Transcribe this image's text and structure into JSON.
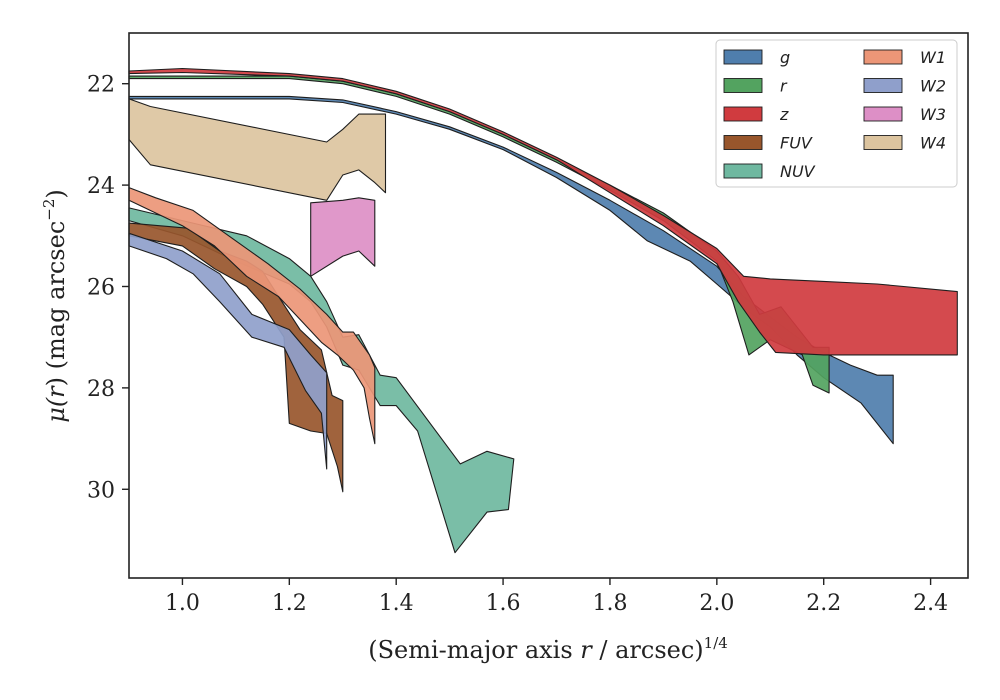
{
  "chart_data": {
    "type": "area",
    "xlabel_main": "(Semi-major axis ",
    "xlabel_var": "r",
    "xlabel_tail": " / arcsec)",
    "xlabel_sup": "1/4",
    "ylabel_main": "μ(",
    "ylabel_var": "r",
    "ylabel_tail": ") (mag arcsec",
    "ylabel_sup": "−2",
    "ylabel_end": ")",
    "xlim": [
      0.9,
      2.47
    ],
    "ylim": [
      31.75,
      21.0
    ],
    "y_inverted": true,
    "xticks": [
      1.0,
      1.2,
      1.4,
      1.6,
      1.8,
      2.0,
      2.2,
      2.4
    ],
    "xtick_labels": [
      "1.0",
      "1.2",
      "1.4",
      "1.6",
      "1.8",
      "2.0",
      "2.2",
      "2.4"
    ],
    "yticks": [
      22,
      24,
      26,
      28,
      30
    ],
    "ytick_labels": [
      "22",
      "24",
      "26",
      "28",
      "30"
    ],
    "grid": false,
    "legend_position": "top-right",
    "legend_columns": 2,
    "series": [
      {
        "name": "W4",
        "color": "#dcc49f",
        "upper": [
          [
            0.9,
            22.3
          ],
          [
            0.94,
            22.45
          ],
          [
            1.27,
            23.15
          ],
          [
            1.3,
            22.9
          ],
          [
            1.33,
            22.6
          ],
          [
            1.38,
            22.6
          ]
        ],
        "lower": [
          [
            0.9,
            23.1
          ],
          [
            0.94,
            23.6
          ],
          [
            1.27,
            24.3
          ],
          [
            1.3,
            23.8
          ],
          [
            1.33,
            23.7
          ],
          [
            1.36,
            23.95
          ],
          [
            1.38,
            24.15
          ]
        ]
      },
      {
        "name": "W3",
        "color": "#dd8fc6",
        "upper": [
          [
            1.24,
            24.35
          ],
          [
            1.3,
            24.3
          ],
          [
            1.33,
            24.25
          ],
          [
            1.36,
            24.3
          ]
        ],
        "lower": [
          [
            1.24,
            25.8
          ],
          [
            1.3,
            25.4
          ],
          [
            1.33,
            25.3
          ],
          [
            1.36,
            25.6
          ]
        ]
      },
      {
        "name": "NUV",
        "color": "#6fb8a0",
        "upper": [
          [
            0.9,
            24.45
          ],
          [
            1.0,
            24.7
          ],
          [
            1.12,
            25.0
          ],
          [
            1.2,
            25.45
          ],
          [
            1.24,
            25.8
          ],
          [
            1.27,
            26.3
          ],
          [
            1.3,
            27.0
          ],
          [
            1.33,
            26.95
          ],
          [
            1.37,
            27.75
          ],
          [
            1.4,
            27.8
          ],
          [
            1.52,
            29.5
          ],
          [
            1.57,
            29.25
          ],
          [
            1.62,
            29.4
          ]
        ],
        "lower": [
          [
            0.9,
            24.7
          ],
          [
            1.0,
            25.0
          ],
          [
            1.1,
            25.5
          ],
          [
            1.2,
            25.95
          ],
          [
            1.24,
            26.3
          ],
          [
            1.27,
            26.8
          ],
          [
            1.3,
            27.55
          ],
          [
            1.33,
            27.65
          ],
          [
            1.37,
            28.35
          ],
          [
            1.4,
            28.35
          ],
          [
            1.44,
            28.85
          ],
          [
            1.51,
            31.25
          ],
          [
            1.57,
            30.45
          ],
          [
            1.61,
            30.4
          ]
        ]
      },
      {
        "name": "FUV",
        "color": "#98562c",
        "upper": [
          [
            0.9,
            24.75
          ],
          [
            1.01,
            24.85
          ],
          [
            1.07,
            25.3
          ],
          [
            1.12,
            25.5
          ],
          [
            1.15,
            25.7
          ],
          [
            1.18,
            26.2
          ],
          [
            1.22,
            26.85
          ],
          [
            1.26,
            27.25
          ],
          [
            1.28,
            28.15
          ],
          [
            1.3,
            28.25
          ]
        ],
        "lower": [
          [
            0.9,
            25.0
          ],
          [
            1.0,
            25.2
          ],
          [
            1.06,
            25.65
          ],
          [
            1.12,
            26.0
          ],
          [
            1.15,
            26.35
          ],
          [
            1.19,
            27.0
          ],
          [
            1.2,
            28.7
          ],
          [
            1.24,
            28.85
          ],
          [
            1.27,
            28.9
          ],
          [
            1.29,
            29.55
          ],
          [
            1.3,
            30.05
          ]
        ]
      },
      {
        "name": "W2",
        "color": "#8f9fcb",
        "upper": [
          [
            0.9,
            24.95
          ],
          [
            1.0,
            25.3
          ],
          [
            1.07,
            25.75
          ],
          [
            1.13,
            26.55
          ],
          [
            1.2,
            26.85
          ],
          [
            1.24,
            27.35
          ],
          [
            1.27,
            27.7
          ]
        ],
        "lower": [
          [
            0.9,
            25.2
          ],
          [
            0.97,
            25.45
          ],
          [
            1.02,
            25.75
          ],
          [
            1.07,
            26.3
          ],
          [
            1.13,
            27.0
          ],
          [
            1.19,
            27.2
          ],
          [
            1.23,
            28.05
          ],
          [
            1.26,
            28.5
          ],
          [
            1.27,
            29.6
          ]
        ]
      },
      {
        "name": "W1",
        "color": "#ec9677",
        "upper": [
          [
            0.9,
            24.05
          ],
          [
            0.95,
            24.25
          ],
          [
            1.02,
            24.5
          ],
          [
            1.1,
            25.1
          ],
          [
            1.16,
            25.55
          ],
          [
            1.22,
            26.05
          ],
          [
            1.27,
            26.55
          ],
          [
            1.3,
            26.9
          ],
          [
            1.32,
            26.9
          ],
          [
            1.35,
            27.35
          ],
          [
            1.36,
            27.6
          ]
        ],
        "lower": [
          [
            0.9,
            24.3
          ],
          [
            1.0,
            24.8
          ],
          [
            1.06,
            25.2
          ],
          [
            1.12,
            25.8
          ],
          [
            1.18,
            26.2
          ],
          [
            1.22,
            26.65
          ],
          [
            1.26,
            27.1
          ],
          [
            1.29,
            27.35
          ],
          [
            1.32,
            27.65
          ],
          [
            1.34,
            28.0
          ],
          [
            1.35,
            28.6
          ],
          [
            1.36,
            29.1
          ]
        ]
      },
      {
        "name": "g",
        "color": "#4f7ead",
        "upper": [
          [
            0.9,
            22.25
          ],
          [
            1.2,
            22.25
          ],
          [
            1.3,
            22.32
          ],
          [
            1.4,
            22.55
          ],
          [
            1.5,
            22.85
          ],
          [
            1.6,
            23.25
          ],
          [
            1.7,
            23.75
          ],
          [
            1.8,
            24.3
          ],
          [
            1.9,
            24.9
          ],
          [
            2.0,
            25.6
          ],
          [
            2.05,
            26.2
          ],
          [
            2.1,
            26.6
          ],
          [
            2.15,
            27.0
          ],
          [
            2.2,
            27.3
          ],
          [
            2.25,
            27.55
          ],
          [
            2.3,
            27.75
          ],
          [
            2.33,
            27.75
          ]
        ],
        "lower": [
          [
            0.9,
            22.3
          ],
          [
            1.2,
            22.3
          ],
          [
            1.3,
            22.37
          ],
          [
            1.4,
            22.6
          ],
          [
            1.5,
            22.9
          ],
          [
            1.6,
            23.3
          ],
          [
            1.7,
            23.85
          ],
          [
            1.8,
            24.5
          ],
          [
            1.87,
            25.1
          ],
          [
            1.95,
            25.5
          ],
          [
            2.0,
            25.95
          ],
          [
            2.06,
            26.5
          ],
          [
            2.1,
            26.8
          ],
          [
            2.15,
            27.35
          ],
          [
            2.2,
            27.8
          ],
          [
            2.27,
            28.3
          ],
          [
            2.33,
            29.1
          ]
        ]
      },
      {
        "name": "r",
        "color": "#53a360",
        "upper": [
          [
            0.9,
            21.85
          ],
          [
            1.2,
            21.85
          ],
          [
            1.3,
            21.95
          ],
          [
            1.4,
            22.2
          ],
          [
            1.5,
            22.55
          ],
          [
            1.6,
            23.0
          ],
          [
            1.7,
            23.5
          ],
          [
            1.8,
            24.0
          ],
          [
            1.9,
            24.55
          ],
          [
            2.0,
            25.3
          ],
          [
            2.04,
            25.8
          ],
          [
            2.08,
            26.55
          ],
          [
            2.12,
            26.4
          ],
          [
            2.18,
            27.2
          ],
          [
            2.21,
            27.2
          ]
        ],
        "lower": [
          [
            0.9,
            21.9
          ],
          [
            1.2,
            21.9
          ],
          [
            1.3,
            22.0
          ],
          [
            1.4,
            22.25
          ],
          [
            1.5,
            22.6
          ],
          [
            1.6,
            23.05
          ],
          [
            1.7,
            23.55
          ],
          [
            1.8,
            24.1
          ],
          [
            1.9,
            24.7
          ],
          [
            2.0,
            25.5
          ],
          [
            2.03,
            26.3
          ],
          [
            2.06,
            27.35
          ],
          [
            2.1,
            27.05
          ],
          [
            2.16,
            27.35
          ],
          [
            2.18,
            27.95
          ],
          [
            2.21,
            28.1
          ]
        ]
      },
      {
        "name": "z",
        "color": "#d03b3f",
        "upper": [
          [
            0.9,
            21.75
          ],
          [
            1.0,
            21.7
          ],
          [
            1.2,
            21.8
          ],
          [
            1.3,
            21.9
          ],
          [
            1.4,
            22.15
          ],
          [
            1.5,
            22.5
          ],
          [
            1.6,
            22.95
          ],
          [
            1.7,
            23.45
          ],
          [
            1.8,
            24.0
          ],
          [
            1.9,
            24.6
          ],
          [
            2.0,
            25.25
          ],
          [
            2.05,
            25.8
          ],
          [
            2.1,
            25.85
          ],
          [
            2.2,
            25.9
          ],
          [
            2.3,
            25.95
          ],
          [
            2.45,
            26.1
          ]
        ],
        "lower": [
          [
            0.9,
            21.8
          ],
          [
            1.0,
            21.78
          ],
          [
            1.2,
            21.85
          ],
          [
            1.3,
            21.95
          ],
          [
            1.4,
            22.2
          ],
          [
            1.5,
            22.55
          ],
          [
            1.6,
            23.0
          ],
          [
            1.7,
            23.5
          ],
          [
            1.8,
            24.15
          ],
          [
            1.9,
            24.8
          ],
          [
            2.0,
            25.55
          ],
          [
            2.04,
            26.3
          ],
          [
            2.08,
            26.9
          ],
          [
            2.11,
            27.3
          ],
          [
            2.2,
            27.35
          ],
          [
            2.3,
            27.35
          ],
          [
            2.45,
            27.35
          ]
        ]
      }
    ],
    "legend": [
      {
        "name": "g",
        "color": "#4f7ead"
      },
      {
        "name": "r",
        "color": "#53a360"
      },
      {
        "name": "z",
        "color": "#d03b3f"
      },
      {
        "name": "FUV",
        "color": "#98562c"
      },
      {
        "name": "NUV",
        "color": "#6fb8a0"
      },
      {
        "name": "W1",
        "color": "#ec9677"
      },
      {
        "name": "W2",
        "color": "#8f9fcb"
      },
      {
        "name": "W3",
        "color": "#dd8fc6"
      },
      {
        "name": "W4",
        "color": "#dcc49f"
      }
    ]
  }
}
